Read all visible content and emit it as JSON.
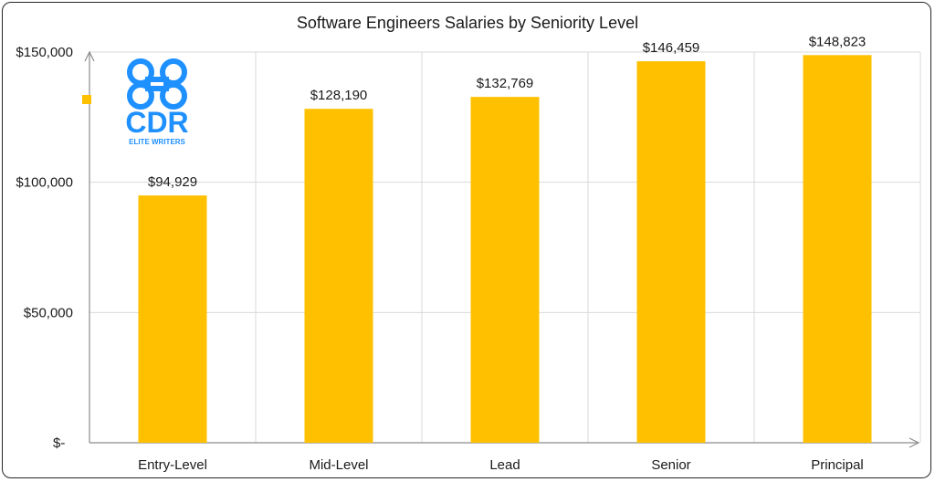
{
  "chart_data": {
    "type": "bar",
    "title": "Software Engineers Salaries by Seniority Level",
    "categories": [
      "Entry-Level",
      "Mid-Level",
      "Lead",
      "Senior",
      "Principal"
    ],
    "values": [
      94929,
      128190,
      132769,
      146459,
      148823
    ],
    "data_labels": [
      "$94,929",
      "$128,190",
      "$132,769",
      "$146,459",
      "$148,823"
    ],
    "y_ticks": [
      {
        "value": 0,
        "label": "$-"
      },
      {
        "value": 50000,
        "label": "$50,000"
      },
      {
        "value": 100000,
        "label": "$100,000"
      },
      {
        "value": 150000,
        "label": "$150,000"
      }
    ],
    "ylim": [
      0,
      150000
    ],
    "xlabel": "",
    "ylabel": "",
    "grid": true,
    "bar_color": "#ffc000",
    "gridline_color": "#d9d9d9",
    "axis_color": "#8c8c8c"
  },
  "logo": {
    "mark": "CDR",
    "tagline": "ELITE WRITERS",
    "color": "#1e90ff"
  }
}
